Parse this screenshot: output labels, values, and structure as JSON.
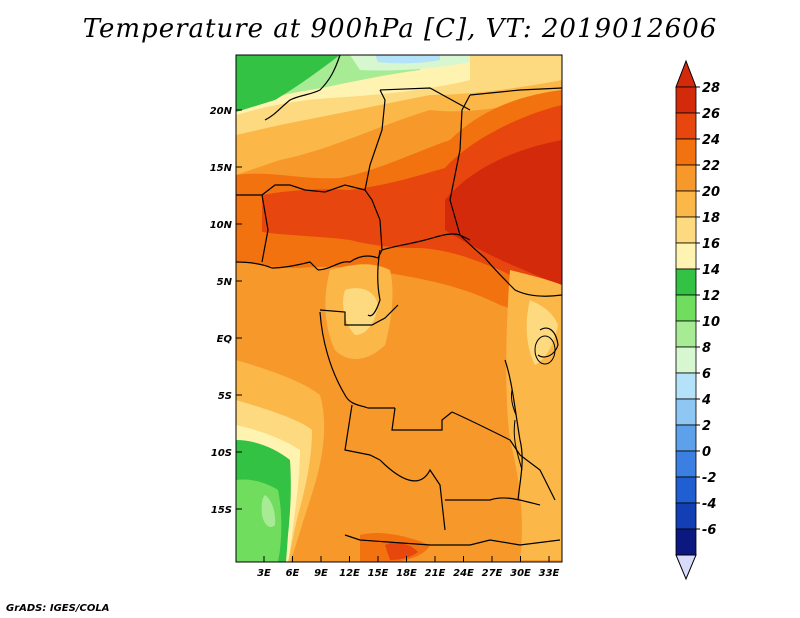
{
  "title": "Temperature at 900hPa [C], VT: 2019012606",
  "credit": "GrADS: IGES/COLA",
  "lat_labels": [
    "20N",
    "15N",
    "10N",
    "5N",
    "EQ",
    "5S",
    "10S",
    "15S"
  ],
  "lon_labels": [
    "3E",
    "6E",
    "9E",
    "12E",
    "15E",
    "18E",
    "21E",
    "24E",
    "27E",
    "30E",
    "33E"
  ],
  "colorbar": {
    "labels": [
      "28",
      "26",
      "24",
      "22",
      "20",
      "18",
      "16",
      "14",
      "12",
      "10",
      "8",
      "6",
      "4",
      "2",
      "0",
      "-2",
      "-4",
      "-6"
    ],
    "colors": [
      "#d42a0c",
      "#e8460f",
      "#f2720f",
      "#f7982a",
      "#fbb849",
      "#fdda7f",
      "#fff3b2",
      "#33c244",
      "#71dd5f",
      "#a8eb95",
      "#d6f7d0",
      "#b4e2f9",
      "#8ec7f3",
      "#5ea1eb",
      "#3b7fe2",
      "#1f5fd2",
      "#1240b4",
      "#0b1880"
    ],
    "top_color": "#d42a0c",
    "bottom_color": "#d8dcfa"
  }
}
